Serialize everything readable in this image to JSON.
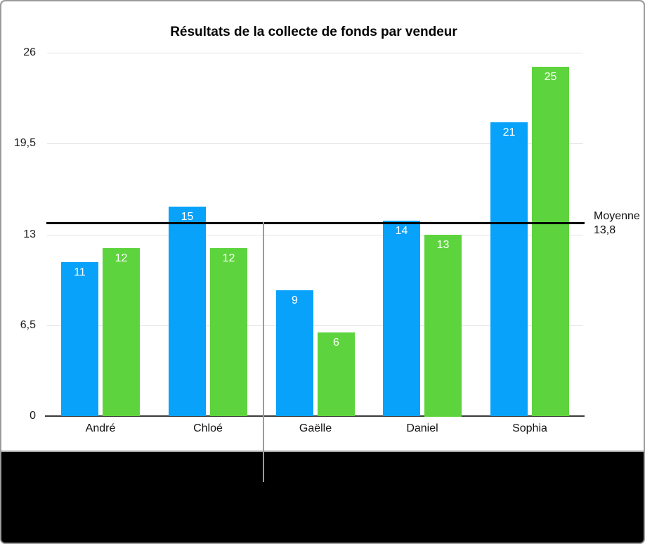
{
  "chart_data": {
    "type": "bar",
    "title": "Résultats de la collecte de fonds par vendeur",
    "categories": [
      "André",
      "Chloé",
      "Gaëlle",
      "Daniel",
      "Sophia"
    ],
    "series": [
      {
        "name": "blue-series",
        "color": "#09A2FA",
        "values": [
          11,
          15,
          9,
          14,
          21
        ]
      },
      {
        "name": "green-series",
        "color": "#5DD43D",
        "values": [
          12,
          12,
          6,
          13,
          25
        ]
      }
    ],
    "ylim": [
      0,
      26
    ],
    "y_ticks": [
      {
        "value": 0,
        "label": "0"
      },
      {
        "value": 6.5,
        "label": "6,5"
      },
      {
        "value": 13,
        "label": "13"
      },
      {
        "value": 19.5,
        "label": "19,5"
      },
      {
        "value": 26,
        "label": "26"
      }
    ],
    "grid": true,
    "legend": "none",
    "value_labels": "inside-top",
    "reference_line": {
      "value": 13.8,
      "label": "Moyenne",
      "value_label": "13,8"
    }
  },
  "colors": {
    "bar_blue": "#09A2FA",
    "bar_green": "#5DD43D",
    "reference_line": "#000000",
    "gridline": "#E3E3E3",
    "axis_line": "#3A3A3A",
    "frame_border": "#9B9B9B",
    "callout_line": "#9B9B9B",
    "matte": "#000000",
    "value_label_text": "#FFFFFF",
    "tick_text": "#1D1D1F"
  }
}
